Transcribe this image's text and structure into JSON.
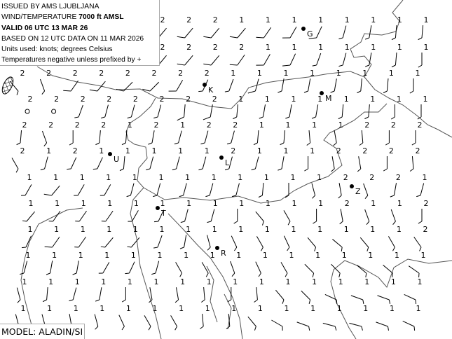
{
  "header": {
    "line1": "ISSUED BY AMS LJUBLJANA",
    "line2_prefix": "WIND/TEMPERATURE ",
    "line2_level": "7000 ft AMSL",
    "line3": "VALID 06 UTC 13 MAR 26",
    "line4": "BASED ON 12 UTC DATA ON 11 MAR 2026",
    "line5": "Units used: knots; degrees Celsius",
    "line6": "Temperatures negative unless prefixed by +"
  },
  "model_label": "MODEL: ALADIN/SI",
  "colors": {
    "ink": "#000000",
    "coast": "#555555",
    "background": "#ffffff"
  },
  "stations": [
    {
      "id": "G",
      "label": "G"
    },
    {
      "id": "K",
      "label": "K"
    },
    {
      "id": "M",
      "label": "M"
    },
    {
      "id": "U",
      "label": "U"
    },
    {
      "id": "L",
      "label": "L"
    },
    {
      "id": "Z",
      "label": "Z"
    },
    {
      "id": "T",
      "label": "T"
    },
    {
      "id": "R",
      "label": "R"
    }
  ],
  "grid": {
    "wind_units": "knots",
    "temperature_units": "degrees Celsius (negative)",
    "rows": [
      {
        "temps": [
          null,
          null,
          null,
          null,
          null,
          "2",
          "2",
          "2",
          "1",
          "1",
          "1",
          "1",
          "1",
          "1",
          "1",
          "1"
        ],
        "dir": [
          null,
          null,
          null,
          null,
          null,
          40,
          40,
          40,
          40,
          35,
          30,
          25,
          15,
          10,
          5,
          5
        ],
        "speed": [
          null,
          null,
          null,
          null,
          null,
          10,
          10,
          10,
          10,
          10,
          10,
          10,
          5,
          5,
          5,
          5
        ]
      },
      {
        "temps": [
          null,
          null,
          null,
          null,
          null,
          "2",
          "2",
          "2",
          "2",
          "1",
          "1",
          "1",
          "1",
          "1",
          "1",
          "1"
        ],
        "dir": [
          null,
          null,
          null,
          null,
          null,
          40,
          40,
          40,
          35,
          30,
          25,
          20,
          15,
          10,
          5,
          0
        ],
        "speed": [
          null,
          null,
          null,
          null,
          null,
          10,
          10,
          10,
          10,
          10,
          10,
          5,
          5,
          5,
          5,
          5
        ]
      },
      {
        "temps": [
          "2",
          "2",
          "2",
          "2",
          "2",
          "2",
          "2",
          "2",
          "1",
          "1",
          "1",
          "1",
          "1",
          "1",
          "1",
          "1"
        ],
        "dir": [
          320,
          340,
          35,
          40,
          45,
          45,
          30,
          25,
          20,
          15,
          10,
          10,
          10,
          5,
          5,
          0
        ],
        "speed": [
          5,
          5,
          10,
          10,
          10,
          10,
          10,
          5,
          5,
          10,
          5,
          5,
          5,
          5,
          5,
          5
        ]
      },
      {
        "temps": [
          "2",
          "2",
          "2",
          "2",
          "2",
          "2",
          "2",
          "2",
          "1",
          "1",
          "1",
          "1",
          "1",
          "1",
          "1",
          "1"
        ],
        "dir": [
          null,
          null,
          20,
          15,
          15,
          15,
          5,
          10,
          5,
          10,
          10,
          10,
          5,
          5,
          0,
          0
        ],
        "speed": [
          0,
          0,
          5,
          5,
          5,
          5,
          10,
          10,
          5,
          5,
          5,
          5,
          5,
          5,
          5,
          5
        ]
      },
      {
        "temps": [
          "2",
          "2",
          "2",
          "2",
          "1",
          "2",
          "1",
          "2",
          "2",
          "1",
          "1",
          "1",
          "1",
          "2",
          "2",
          "2"
        ],
        "dir": [
          5,
          340,
          0,
          5,
          5,
          10,
          15,
          15,
          15,
          5,
          5,
          355,
          350,
          355,
          0,
          0
        ],
        "speed": [
          5,
          5,
          5,
          5,
          5,
          5,
          5,
          5,
          5,
          5,
          5,
          5,
          5,
          5,
          5,
          5
        ]
      },
      {
        "temps": [
          "2",
          "1",
          "2",
          "1",
          "1",
          "1",
          "1",
          "1",
          "2",
          "1",
          "1",
          "1",
          "2",
          "2",
          "2",
          "2"
        ],
        "dir": [
          330,
          15,
          25,
          25,
          5,
          15,
          15,
          15,
          15,
          15,
          10,
          0,
          350,
          350,
          0,
          355
        ],
        "speed": [
          5,
          5,
          5,
          5,
          5,
          5,
          5,
          5,
          5,
          5,
          5,
          5,
          5,
          5,
          5,
          5
        ]
      },
      {
        "temps": [
          "1",
          "1",
          "1",
          "1",
          "1",
          "1",
          "1",
          "1",
          "1",
          "1",
          "1",
          "1",
          "2",
          "2",
          "2",
          "1"
        ],
        "dir": [
          30,
          40,
          30,
          30,
          15,
          15,
          15,
          15,
          15,
          5,
          0,
          345,
          350,
          340,
          10,
          15
        ],
        "speed": [
          5,
          10,
          5,
          5,
          5,
          5,
          5,
          5,
          5,
          5,
          5,
          5,
          5,
          5,
          5,
          5
        ]
      },
      {
        "temps": [
          "1",
          "1",
          "1",
          "1",
          "1",
          "1",
          "1",
          "1",
          "1",
          "1",
          "1",
          "1",
          "2",
          "1",
          "1",
          "2"
        ],
        "dir": [
          40,
          35,
          35,
          35,
          30,
          25,
          15,
          15,
          0,
          320,
          330,
          0,
          350,
          340,
          340,
          0
        ],
        "speed": [
          5,
          5,
          5,
          5,
          5,
          5,
          5,
          5,
          5,
          5,
          5,
          5,
          5,
          5,
          5,
          5
        ]
      },
      {
        "temps": [
          "1",
          "1",
          "1",
          "1",
          "1",
          "1",
          "1",
          "1",
          "1",
          "1",
          "1",
          "1",
          "1",
          "1",
          "1",
          "2"
        ],
        "dir": [
          25,
          35,
          35,
          40,
          40,
          20,
          10,
          345,
          335,
          330,
          335,
          320,
          310,
          320,
          330,
          325
        ],
        "speed": [
          5,
          10,
          5,
          5,
          5,
          5,
          5,
          5,
          5,
          5,
          5,
          5,
          5,
          5,
          5,
          5
        ]
      },
      {
        "temps": [
          "1",
          "1",
          "1",
          "1",
          "1",
          "1",
          "1",
          "1",
          "1",
          "1",
          "1",
          "1",
          "1",
          "1",
          "1",
          "1"
        ],
        "dir": [
          15,
          10,
          10,
          30,
          25,
          15,
          330,
          330,
          340,
          335,
          330,
          315,
          315,
          310,
          310,
          305
        ],
        "speed": [
          5,
          5,
          5,
          5,
          5,
          5,
          5,
          5,
          5,
          5,
          5,
          5,
          5,
          5,
          5,
          5
        ]
      },
      {
        "temps": [
          "1",
          "1",
          "1",
          "1",
          "1",
          "1",
          "1",
          "1",
          "1",
          "1",
          "1",
          "1",
          "1",
          "1",
          "1",
          "1"
        ],
        "dir": [
          345,
          5,
          15,
          10,
          0,
          350,
          350,
          355,
          0,
          355,
          320,
          315,
          295,
          290,
          290,
          295
        ],
        "speed": [
          5,
          5,
          5,
          5,
          5,
          5,
          5,
          5,
          5,
          5,
          5,
          5,
          5,
          5,
          5,
          5
        ]
      },
      {
        "temps": [
          "1",
          "1",
          "1",
          "1",
          "1",
          "1",
          "1",
          "1",
          "1",
          "1",
          "1",
          "1",
          "1",
          "1",
          "1",
          "1"
        ],
        "dir": [
          345,
          345,
          350,
          345,
          335,
          330,
          330,
          355,
          355,
          320,
          300,
          290,
          285,
          285,
          290,
          295
        ],
        "speed": [
          5,
          5,
          5,
          5,
          5,
          5,
          5,
          5,
          5,
          5,
          5,
          5,
          5,
          5,
          5,
          5
        ]
      }
    ]
  }
}
